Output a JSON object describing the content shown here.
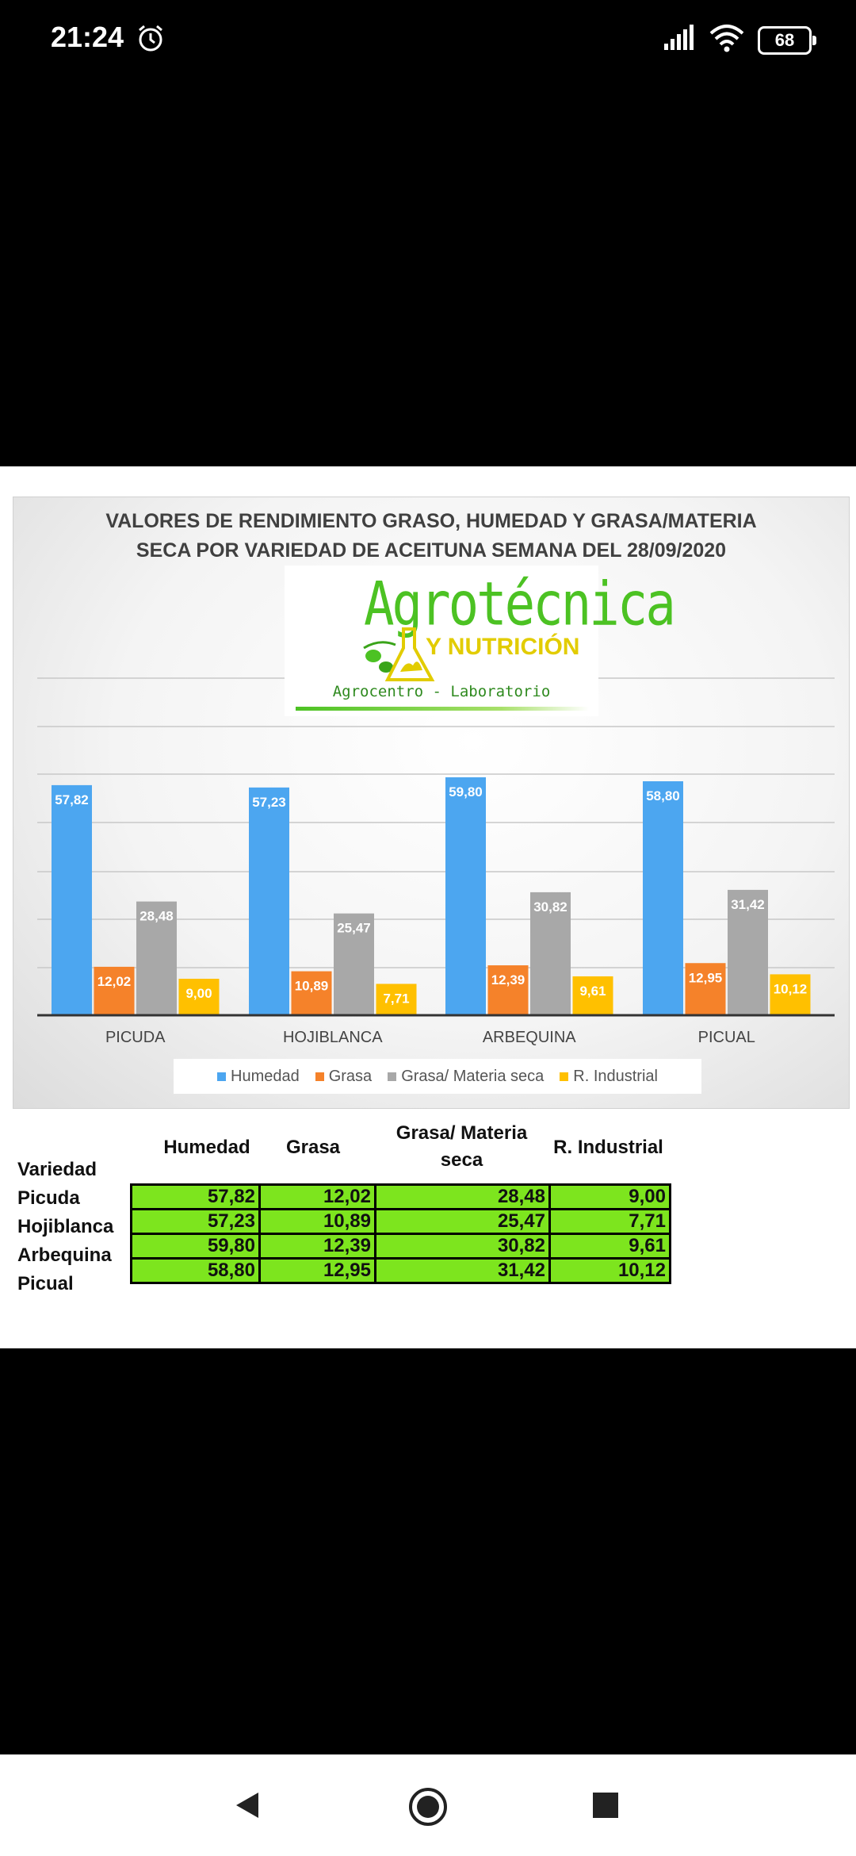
{
  "status_bar": {
    "time": "21:24",
    "battery": "68"
  },
  "chart_data": {
    "type": "bar",
    "title": "VALORES DE RENDIMIENTO GRASO, HUMEDAD Y GRASA/MATERIA SECA POR VARIEDAD DE ACEITUNA SEMANA DEL 28/09/2020",
    "title_lines": [
      "VALORES DE RENDIMIENTO GRASO, HUMEDAD Y GRASA/MATERIA",
      "SECA POR VARIEDAD DE ACEITUNA SEMANA DEL 28/09/2020"
    ],
    "categories": [
      "PICUDA",
      "HOJIBLANCA",
      "ARBEQUINA",
      "PICUAL"
    ],
    "series": [
      {
        "name": "Humedad",
        "values": [
          57.82,
          57.23,
          59.8,
          58.8
        ],
        "labels": [
          "57,82",
          "57,23",
          "59,80",
          "58,80"
        ],
        "color": "#4ca6f0"
      },
      {
        "name": "Grasa",
        "values": [
          12.02,
          10.89,
          12.39,
          12.95
        ],
        "labels": [
          "12,02",
          "10,89",
          "12,39",
          "12,95"
        ],
        "color": "#f5822a"
      },
      {
        "name": "Grasa/ Materia seca",
        "values": [
          28.48,
          25.47,
          30.82,
          31.42
        ],
        "labels": [
          "28,48",
          "25,47",
          "30,82",
          "31,42"
        ],
        "color": "#a8a8a8"
      },
      {
        "name": "R. Industrial",
        "values": [
          9.0,
          7.71,
          9.61,
          10.12
        ],
        "labels": [
          "9,00",
          "7,71",
          "9,61",
          "10,12"
        ],
        "color": "#ffc000"
      }
    ],
    "ylim": [
      0,
      70
    ],
    "grid": true,
    "legend_position": "bottom"
  },
  "logo": {
    "name": "Agrotécnica",
    "subtitle": "Y NUTRICIÓN",
    "tagline": "Agrocentro - Laboratorio"
  },
  "table": {
    "row_header": "Variedad",
    "columns": [
      "Humedad",
      "Grasa",
      "Grasa/ Materia",
      "seca",
      "R. Industrial"
    ],
    "rows": [
      {
        "label": "Picuda",
        "cells": [
          "57,82",
          "12,02",
          "28,48",
          "9,00"
        ]
      },
      {
        "label": "Hojiblanca",
        "cells": [
          "57,23",
          "10,89",
          "25,47",
          "7,71"
        ]
      },
      {
        "label": "Arbequina",
        "cells": [
          "59,80",
          "12,39",
          "30,82",
          "9,61"
        ]
      },
      {
        "label": "Picual",
        "cells": [
          "58,80",
          "12,95",
          "31,42",
          "10,12"
        ]
      }
    ]
  }
}
